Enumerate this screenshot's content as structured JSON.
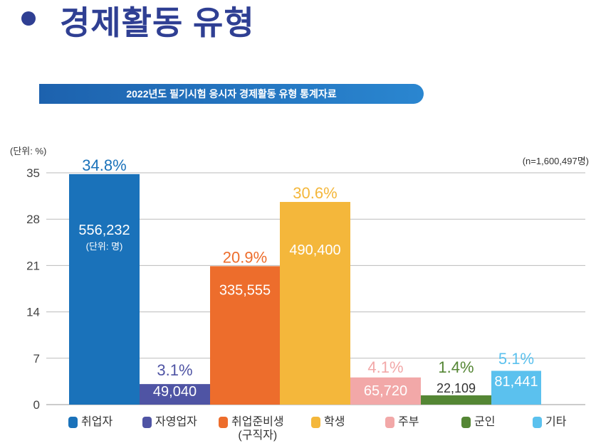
{
  "heading": "경제활동 유형",
  "chart_data": {
    "type": "bar",
    "title": "2022년도 필기시험 응시자 경제활동 유형 통계자료",
    "ylabel": "(단위: %)",
    "note": "(n=1,600,497명)",
    "count_unit": "(단위: 명)",
    "ylim": [
      0,
      35
    ],
    "yticks": [
      0,
      7,
      14,
      21,
      28,
      35
    ],
    "grid": true,
    "legend_position": "bottom",
    "categories": [
      "취업자",
      "자영업자",
      "취업준비생\n(구직자)",
      "학생",
      "주부",
      "군인",
      "기타"
    ],
    "values": [
      34.8,
      3.1,
      20.9,
      30.6,
      4.1,
      1.4,
      5.1
    ],
    "value_labels": [
      "34.8%",
      "3.1%",
      "20.9%",
      "30.6%",
      "4.1%",
      "1.4%",
      "5.1%"
    ],
    "counts": [
      "556,232",
      "49,040",
      "335,555",
      "490,400",
      "65,720",
      "22,109",
      "81,441"
    ],
    "colors": [
      "#1a72ba",
      "#4f54a4",
      "#ed6d2c",
      "#f4b73b",
      "#f2a8a8",
      "#548634",
      "#5bc1ee"
    ]
  }
}
